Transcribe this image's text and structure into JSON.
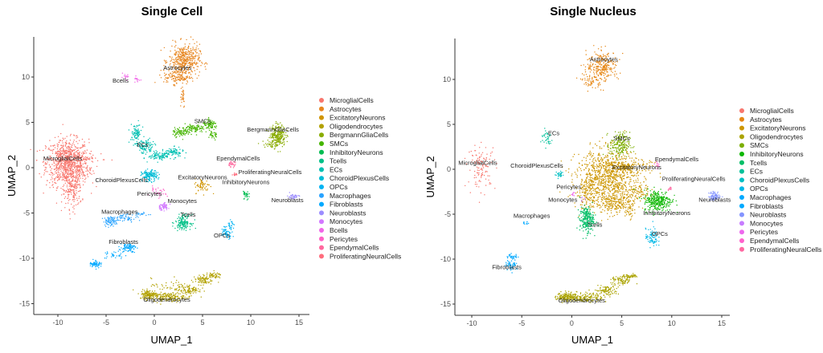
{
  "chart_data": [
    {
      "type": "scatter",
      "title": "Single Cell",
      "xlabel": "UMAP_1",
      "ylabel": "UMAP_2",
      "xlim": [
        -12.5,
        16
      ],
      "ylim": [
        -16,
        14
      ],
      "xticks": [
        -10,
        -5,
        0,
        5,
        10,
        15
      ],
      "yticks": [
        -15,
        -10,
        -5,
        0,
        5,
        10
      ],
      "grid": false,
      "legend": "right",
      "series": [
        {
          "name": "MicroglialCells",
          "color": "#F8766D",
          "label_at": [
            -9.5,
            0.8
          ],
          "blobs": [
            [
              -9,
              0.5,
              1.1,
              1.3,
              900
            ],
            [
              -8.5,
              -2.5,
              0.5,
              1,
              150
            ],
            [
              -7,
              1,
              1,
              0.15,
              40
            ],
            [
              -7.5,
              -0.5,
              0.7,
              0.3,
              40
            ]
          ]
        },
        {
          "name": "Astrocytes",
          "color": "#E7851E",
          "label_at": [
            2.4,
            10.8
          ],
          "blobs": [
            [
              3.1,
              11.8,
              0.8,
              0.9,
              450
            ],
            [
              2.4,
              10.0,
              0.7,
              0.4,
              120
            ],
            [
              2.9,
              8,
              0.15,
              0.7,
              30
            ]
          ]
        },
        {
          "name": "ExcitatoryNeurons",
          "color": "#D09400",
          "label_at": [
            5,
            -1.3
          ],
          "blobs": [
            [
              5,
              -2,
              0.4,
              0.4,
              60
            ]
          ]
        },
        {
          "name": "Oligodendrocytes",
          "color": "#B2A100",
          "label_at": [
            1.3,
            -14.8
          ],
          "blobs": [
            [
              -0.5,
              -14,
              0.5,
              0.25,
              150
            ],
            [
              1.5,
              -14.3,
              0.8,
              0.25,
              150
            ],
            [
              3.5,
              -13.5,
              0.6,
              0.3,
              100
            ],
            [
              5,
              -12.4,
              0.5,
              0.25,
              80
            ],
            [
              6,
              -11.9,
              0.5,
              0.15,
              50
            ],
            [
              1.5,
              -13,
              0.9,
              0.4,
              40
            ]
          ]
        },
        {
          "name": "BergmannGliaCells",
          "color": "#89AC00",
          "label_at": [
            12.3,
            4
          ],
          "blobs": [
            [
              12.8,
              3.6,
              0.4,
              0.6,
              250
            ],
            [
              12,
              2.5,
              0.5,
              0.3,
              30
            ]
          ]
        },
        {
          "name": "SMCs",
          "color": "#45B500",
          "label_at": [
            5,
            4.9
          ],
          "blobs": [
            [
              2.7,
              3.9,
              0.4,
              0.25,
              70
            ],
            [
              4.2,
              4.3,
              0.5,
              0.25,
              100
            ],
            [
              5.8,
              4.7,
              0.4,
              0.25,
              80
            ],
            [
              6.1,
              3.5,
              0.3,
              0.3,
              30
            ]
          ]
        },
        {
          "name": "InhibitoryNeurons",
          "color": "#00BC51",
          "label_at": [
            9.5,
            -1.8
          ],
          "blobs": [
            [
              9.5,
              -3,
              0.15,
              0.3,
              30
            ]
          ]
        },
        {
          "name": "Tcells",
          "color": "#00C087",
          "label_at": [
            3.5,
            -5.4
          ],
          "blobs": [
            [
              3,
              -6,
              0.4,
              0.4,
              150
            ]
          ]
        },
        {
          "name": "ECs",
          "color": "#00C0B2",
          "label_at": [
            -1.2,
            2.3
          ],
          "blobs": [
            [
              -1.9,
              3.8,
              0.3,
              0.5,
              80
            ],
            [
              -1,
              2.3,
              0.5,
              0.4,
              100
            ],
            [
              0.6,
              1.3,
              0.6,
              0.25,
              100
            ],
            [
              2,
              1.7,
              0.5,
              0.25,
              80
            ]
          ]
        },
        {
          "name": "ChoroidPlexusCells",
          "color": "#00BCD6",
          "label_at": [
            -3.4,
            -1.6
          ],
          "blobs": [
            [
              -0.5,
              -0.9,
              0.4,
              0.3,
              150
            ]
          ]
        },
        {
          "name": "OPCs",
          "color": "#00B3F2",
          "label_at": [
            7,
            -7.7
          ],
          "blobs": [
            [
              7.5,
              -7.1,
              0.3,
              0.35,
              60
            ],
            [
              8,
              -6.3,
              0.2,
              0.3,
              20
            ]
          ]
        },
        {
          "name": "Macrophages",
          "color": "#29A3FF",
          "label_at": [
            -3.6,
            -5.1
          ],
          "blobs": [
            [
              -4.5,
              -5.9,
              0.4,
              0.25,
              80
            ],
            [
              -2.8,
              -5.5,
              0.6,
              0.2,
              50
            ],
            [
              -1.3,
              -5.1,
              0.4,
              0.1,
              20
            ]
          ]
        },
        {
          "name": "Fibroblasts",
          "color": "#00A9FF",
          "label_at": [
            -3.2,
            -8.4
          ],
          "blobs": [
            [
              -6.1,
              -10.6,
              0.3,
              0.2,
              60
            ],
            [
              -4.2,
              -9.7,
              0.6,
              0.25,
              30
            ],
            [
              -2.7,
              -8.8,
              0.4,
              0.25,
              80
            ]
          ]
        },
        {
          "name": "Neuroblasts",
          "color": "#9C8DFF",
          "label_at": [
            13.8,
            -3.8
          ],
          "blobs": [
            [
              14.4,
              -3.2,
              0.3,
              0.15,
              40
            ]
          ]
        },
        {
          "name": "Monocytes",
          "color": "#D277FF",
          "label_at": [
            2.9,
            -3.9
          ],
          "blobs": [
            [
              0.9,
              -4.3,
              0.3,
              0.2,
              60
            ]
          ]
        },
        {
          "name": "Bcells",
          "color": "#F166E8",
          "label_at": [
            -3.5,
            9.4
          ],
          "blobs": [
            [
              -3,
              10,
              0.2,
              0.15,
              15
            ],
            [
              -1.8,
              9.7,
              0.2,
              0.15,
              15
            ]
          ]
        },
        {
          "name": "Pericytes",
          "color": "#FF61C7",
          "label_at": [
            -0.5,
            -3.1
          ],
          "blobs": [
            [
              0.3,
              -2.8,
              0.5,
              0.3,
              30
            ]
          ]
        },
        {
          "name": "EpendymalCells",
          "color": "#FF689E",
          "label_at": [
            8.7,
            0.8
          ],
          "blobs": [
            [
              8,
              0.4,
              0.2,
              0.15,
              30
            ]
          ]
        },
        {
          "name": "ProliferatingNeuralCells",
          "color": "#FF6C7D",
          "label_at": [
            12,
            -0.7
          ],
          "blobs": [
            [
              8.3,
              -0.8,
              0.15,
              0.1,
              12
            ]
          ]
        }
      ]
    },
    {
      "type": "scatter",
      "title": "Single Nucleus",
      "xlabel": "UMAP_1",
      "ylabel": "UMAP_2",
      "xlim": [
        -12,
        16
      ],
      "ylim": [
        -16.3,
        14
      ],
      "xticks": [
        -10,
        -5,
        0,
        5,
        10,
        15
      ],
      "yticks": [
        -15,
        -10,
        -5,
        0,
        5,
        10
      ],
      "grid": false,
      "legend": "right",
      "series": [
        {
          "name": "MicroglialCells",
          "color": "#F8766D",
          "label_at": [
            -9.4,
            0.5
          ],
          "blobs": [
            [
              -9,
              0.3,
              0.7,
              1.2,
              120
            ]
          ]
        },
        {
          "name": "Astrocytes",
          "color": "#E68613",
          "label_at": [
            3.2,
            12
          ],
          "blobs": [
            [
              3.1,
              11.5,
              0.8,
              0.8,
              250
            ],
            [
              2,
              9.8,
              0.5,
              0.4,
              60
            ]
          ]
        },
        {
          "name": "ExcitatoryNeurons",
          "color": "#CD9600",
          "label_at": [
            6.5,
            0
          ],
          "blobs": [
            [
              3.5,
              -1,
              1.5,
              1.6,
              900
            ],
            [
              5.5,
              0.3,
              1.2,
              0.4,
              200
            ],
            [
              4.5,
              -3.8,
              1,
              0.6,
              200
            ],
            [
              1.5,
              -2.5,
              0.6,
              1,
              120
            ],
            [
              6.5,
              -2.5,
              0.8,
              0.4,
              80
            ],
            [
              5.8,
              -4.5,
              0.2,
              0.5,
              30
            ]
          ]
        },
        {
          "name": "Oligodendrocytes",
          "color": "#ABA300",
          "label_at": [
            1,
            -14.8
          ],
          "blobs": [
            [
              -0.5,
              -14.2,
              0.5,
              0.25,
              150
            ],
            [
              1.5,
              -14.3,
              0.8,
              0.25,
              150
            ],
            [
              3.5,
              -13.5,
              0.6,
              0.3,
              100
            ],
            [
              5,
              -12.4,
              0.5,
              0.25,
              80
            ],
            [
              5.9,
              -11.9,
              0.4,
              0.12,
              40
            ]
          ]
        },
        {
          "name": "SMCs",
          "color": "#7CAE00",
          "label_at": [
            5,
            3.2
          ],
          "blobs": [
            [
              4.8,
              2.7,
              0.5,
              0.7,
              200
            ]
          ]
        },
        {
          "name": "InhibitoryNeurons",
          "color": "#0CB702",
          "label_at": [
            9.5,
            -5.1
          ],
          "blobs": [
            [
              8.6,
              -3.5,
              0.7,
              0.6,
              300
            ]
          ]
        },
        {
          "name": "Tcells",
          "color": "#00BE67",
          "label_at": [
            2.3,
            -6.4
          ],
          "blobs": [
            [
              1.5,
              -5.6,
              0.35,
              0.7,
              250
            ]
          ]
        },
        {
          "name": "ECs",
          "color": "#00C19A",
          "label_at": [
            -1.8,
            3.8
          ],
          "blobs": [
            [
              -2.5,
              3.5,
              0.3,
              0.5,
              40
            ]
          ]
        },
        {
          "name": "ChoroidPlexusCells",
          "color": "#00BFC4",
          "label_at": [
            -3.5,
            0.2
          ],
          "blobs": [
            [
              -1.2,
              -0.6,
              0.2,
              0.2,
              30
            ]
          ]
        },
        {
          "name": "OPCs",
          "color": "#00B8E7",
          "label_at": [
            8.8,
            -7.4
          ],
          "blobs": [
            [
              8,
              -7.6,
              0.3,
              0.5,
              80
            ]
          ]
        },
        {
          "name": "Macrophages",
          "color": "#00A9FF",
          "label_at": [
            -4,
            -5.4
          ],
          "blobs": [
            [
              -4.5,
              -6,
              0.2,
              0.1,
              12
            ]
          ]
        },
        {
          "name": "Fibroblasts",
          "color": "#00A9FF",
          "label_at": [
            -6.5,
            -11.1
          ],
          "blobs": [
            [
              -6,
              -9.7,
              0.3,
              0.15,
              30
            ],
            [
              -6,
              -10.6,
              0.3,
              0.3,
              50
            ]
          ]
        },
        {
          "name": "Neuroblasts",
          "color": "#8494FF",
          "label_at": [
            14.3,
            -3.6
          ],
          "blobs": [
            [
              14.3,
              -3,
              0.3,
              0.25,
              80
            ]
          ]
        },
        {
          "name": "Monocytes",
          "color": "#C77CFF",
          "label_at": [
            -0.9,
            -3.6
          ],
          "blobs": [
            [
              1.1,
              -3.2,
              0.1,
              0.2,
              6
            ]
          ]
        },
        {
          "name": "Pericytes",
          "color": "#ED68ED",
          "label_at": [
            -0.3,
            -2.2
          ],
          "blobs": [
            [
              0.1,
              -2.8,
              0.1,
              0.15,
              8
            ]
          ]
        },
        {
          "name": "EpendymalCells",
          "color": "#FF61CC",
          "label_at": [
            10.5,
            0.9
          ],
          "blobs": [
            [
              8.5,
              0.5,
              0.1,
              0.15,
              12
            ]
          ]
        },
        {
          "name": "ProliferatingNeuralCells",
          "color": "#FF68A1",
          "label_at": [
            12.2,
            -1.3
          ],
          "blobs": [
            [
              9.8,
              -2.1,
              0.1,
              0.12,
              12
            ]
          ]
        }
      ]
    }
  ]
}
